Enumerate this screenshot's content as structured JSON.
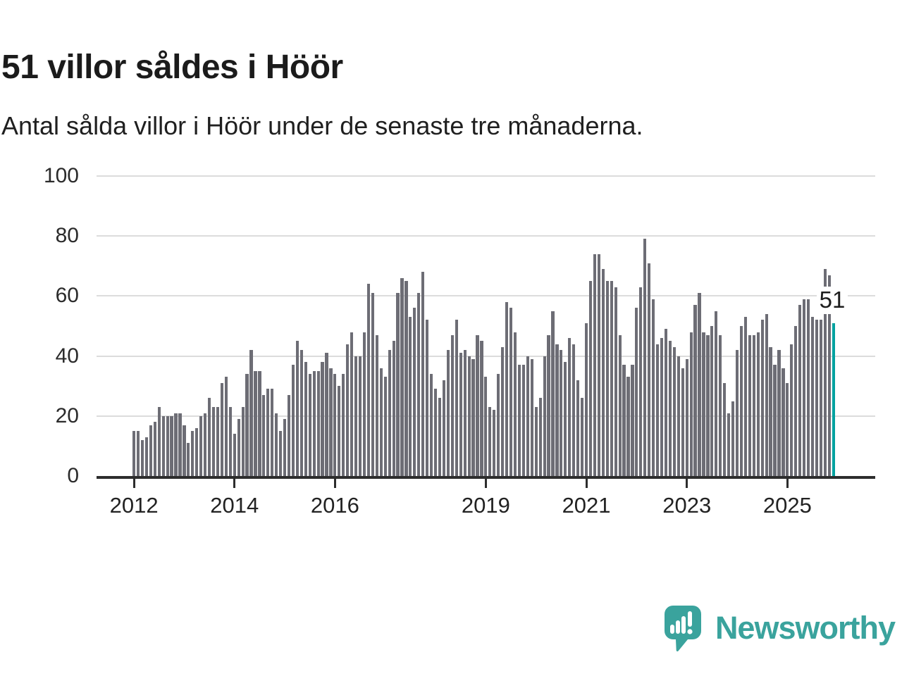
{
  "header": {
    "title": "51 villor såldes i Höör",
    "subtitle": "Antal sålda villor i Höör under de senaste tre månaderna."
  },
  "chart_data": {
    "type": "bar",
    "title": "51 villor såldes i Höör",
    "subtitle": "Antal sålda villor i Höör under de senaste tre månaderna.",
    "x_start": "2012-01",
    "x_end": "2025-12",
    "x_frequency": "monthly",
    "values": [
      15,
      15,
      12,
      13,
      17,
      18,
      23,
      20,
      20,
      20,
      21,
      21,
      17,
      11,
      15,
      16,
      20,
      21,
      26,
      23,
      23,
      31,
      33,
      23,
      14,
      19,
      23,
      34,
      42,
      35,
      35,
      27,
      29,
      29,
      21,
      15,
      19,
      27,
      37,
      45,
      42,
      38,
      34,
      35,
      35,
      38,
      41,
      36,
      34,
      30,
      34,
      44,
      48,
      40,
      40,
      48,
      64,
      61,
      47,
      36,
      33,
      42,
      45,
      61,
      66,
      65,
      53,
      56,
      61,
      68,
      52,
      34,
      29,
      26,
      32,
      42,
      47,
      52,
      41,
      42,
      40,
      39,
      47,
      45,
      33,
      23,
      22,
      34,
      43,
      58,
      56,
      48,
      37,
      37,
      40,
      39,
      23,
      26,
      40,
      47,
      55,
      44,
      42,
      38,
      46,
      44,
      32,
      26,
      51,
      65,
      74,
      74,
      69,
      65,
      65,
      63,
      47,
      37,
      33,
      37,
      56,
      63,
      79,
      71,
      59,
      44,
      46,
      49,
      45,
      43,
      40,
      36,
      39,
      48,
      57,
      61,
      48,
      47,
      50,
      55,
      47,
      31,
      21,
      25,
      42,
      50,
      53,
      47,
      47,
      48,
      52,
      54,
      43,
      37,
      42,
      36,
      31,
      44,
      50,
      57,
      59,
      59,
      53,
      52,
      52,
      69,
      67,
      51
    ],
    "highlight_last_bar": true,
    "highlight_value": 51,
    "highlight_label": "51",
    "ylim": [
      0,
      100
    ],
    "y_ticks": [
      0,
      20,
      40,
      60,
      80,
      100
    ],
    "x_ticks": [
      {
        "label": "2012",
        "month_index": 0
      },
      {
        "label": "2014",
        "month_index": 24
      },
      {
        "label": "2016",
        "month_index": 48
      },
      {
        "label": "2019",
        "month_index": 84
      },
      {
        "label": "2021",
        "month_index": 108
      },
      {
        "label": "2023",
        "month_index": 132
      },
      {
        "label": "2025",
        "month_index": 156
      }
    ],
    "grid": true,
    "legend": "none",
    "colors": {
      "bar": "#6d6d75",
      "highlight": "#00a2a0",
      "grid": "#dcdcdc",
      "axis": "#2d2d2d",
      "label_text": "#1d1d1d"
    }
  },
  "footer": {
    "brand": "Newsworthy",
    "brand_color": "#3aa39d",
    "logo_icon": "newsworthy-speech-bubble-barchart-icon"
  }
}
